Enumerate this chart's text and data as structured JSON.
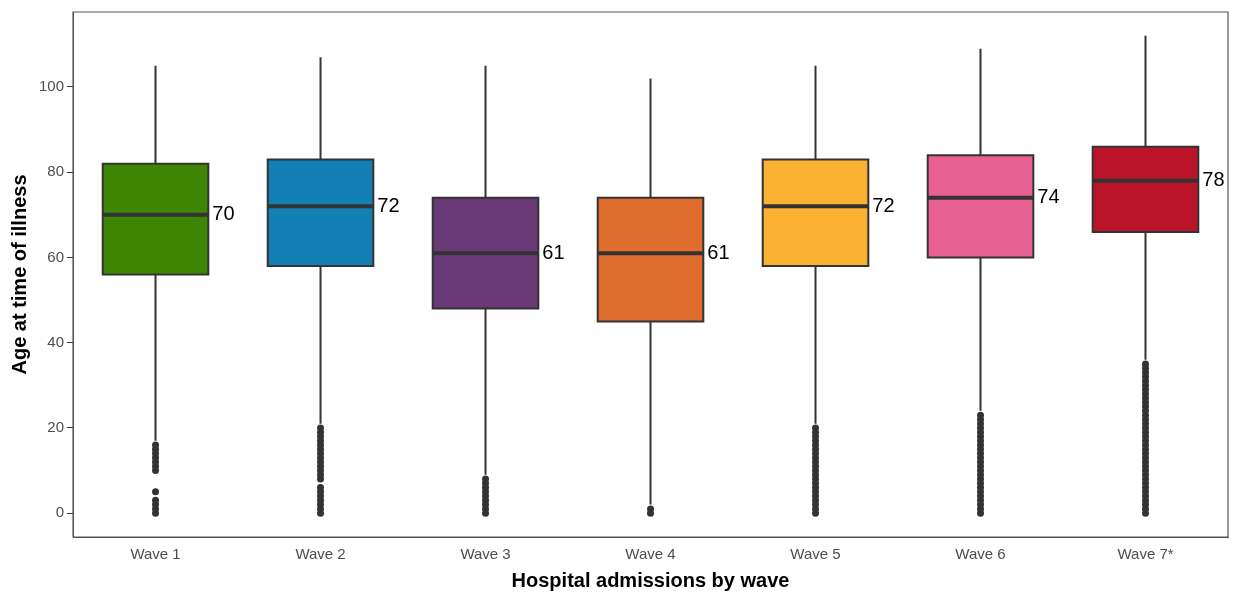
{
  "chart_data": {
    "type": "box",
    "xlabel": "Hospital admissions by wave",
    "ylabel": "Age at time of illness",
    "categories": [
      "Wave 1",
      "Wave 2",
      "Wave 3",
      "Wave 4",
      "Wave 5",
      "Wave 6",
      "Wave 7*"
    ],
    "colors": [
      "#3f8504",
      "#1380b5",
      "#693876",
      "#df6d2d",
      "#fbb131",
      "#e86091",
      "#bb1429"
    ],
    "boxes": [
      {
        "low": 17,
        "q1": 56,
        "median": 70,
        "q3": 82,
        "high": 105,
        "outliers": [
          16,
          15,
          14,
          13,
          12,
          11,
          10,
          5,
          3,
          2,
          1,
          0
        ]
      },
      {
        "low": 21,
        "q1": 58,
        "median": 72,
        "q3": 83,
        "high": 107,
        "outliers": [
          20,
          19,
          18,
          17,
          16,
          15,
          14,
          13,
          12,
          11,
          10,
          9,
          8,
          6,
          5,
          4,
          3,
          2,
          1,
          0
        ]
      },
      {
        "low": 9,
        "q1": 48,
        "median": 61,
        "q3": 74,
        "high": 105,
        "outliers": [
          8,
          7,
          6,
          5,
          4,
          3,
          2,
          1,
          0
        ]
      },
      {
        "low": 2,
        "q1": 45,
        "median": 61,
        "q3": 74,
        "high": 102,
        "outliers": [
          1,
          0
        ]
      },
      {
        "low": 21,
        "q1": 58,
        "median": 72,
        "q3": 83,
        "high": 105,
        "outliers": [
          20,
          19,
          18,
          17,
          16,
          15,
          14,
          13,
          12,
          11,
          10,
          9,
          8,
          7,
          6,
          5,
          4,
          3,
          2,
          1,
          0
        ]
      },
      {
        "low": 24,
        "q1": 60,
        "median": 74,
        "q3": 84,
        "high": 109,
        "outliers": [
          23,
          22,
          21,
          20,
          19,
          18,
          17,
          16,
          15,
          14,
          13,
          12,
          11,
          10,
          9,
          8,
          7,
          6,
          5,
          4,
          3,
          2,
          1,
          0
        ]
      },
      {
        "low": 36,
        "q1": 66,
        "median": 78,
        "q3": 86,
        "high": 112,
        "outliers": [
          35,
          34,
          33,
          32,
          31,
          30,
          29,
          28,
          27,
          26,
          25,
          24,
          23,
          22,
          21,
          20,
          19,
          18,
          17,
          16,
          15,
          14,
          13,
          12,
          11,
          10,
          9,
          8,
          7,
          6,
          5,
          4,
          3,
          2,
          1,
          0
        ]
      }
    ],
    "annotations": [
      {
        "text": "70",
        "x": "Wave 1",
        "y": 70
      },
      {
        "text": "72",
        "x": "Wave 2",
        "y": 72
      },
      {
        "text": "61",
        "x": "Wave 3",
        "y": 61
      },
      {
        "text": "61",
        "x": "Wave 4",
        "y": 61
      },
      {
        "text": "72",
        "x": "Wave 5",
        "y": 72
      },
      {
        "text": "74",
        "x": "Wave 6",
        "y": 74
      },
      {
        "text": "78",
        "x": "Wave 7*",
        "y": 78
      }
    ],
    "ylim": [
      -5.6,
      117.6
    ],
    "yticks": [
      0,
      20,
      40,
      60,
      80,
      100
    ],
    "grid": false,
    "legend": false
  }
}
